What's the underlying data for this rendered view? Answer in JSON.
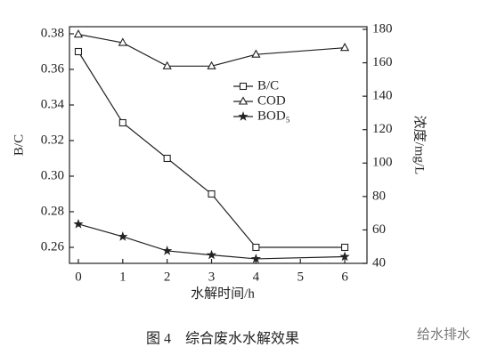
{
  "chart_data": {
    "type": "line",
    "x_label": "水解时间/h",
    "y_label": "B/C",
    "y2_label": "浓度/mg/L",
    "caption": "图 4　综合废水水解效果",
    "watermark": "给水排水",
    "x": [
      0,
      1,
      2,
      3,
      4,
      6
    ],
    "xlim": [
      -0.2,
      6.5
    ],
    "xticks": [
      0,
      1,
      2,
      3,
      4,
      5,
      6
    ],
    "ylim": [
      0.251,
      0.384
    ],
    "yticks": [
      0.26,
      0.28,
      {
        "value": 0.3,
        "label": "0.30"
      },
      0.32,
      0.34,
      0.36,
      0.38
    ],
    "y2lim": [
      40,
      181.6
    ],
    "y2ticks": [
      40,
      60,
      80,
      100,
      120,
      140,
      160,
      180
    ],
    "legend": "center",
    "series": [
      {
        "name": "B/C",
        "color": "#222222",
        "marker": "square",
        "values": [
          0.37,
          0.33,
          0.31,
          0.29,
          0.26,
          0.26
        ]
      },
      {
        "name": "COD",
        "color": "#222222",
        "marker": "triangle",
        "axis": "y2",
        "values": [
          177,
          172,
          158,
          158,
          165,
          169
        ]
      },
      {
        "name": "BOD₅",
        "color": "#222222",
        "marker": "star",
        "axis": "y2",
        "values": [
          63.5,
          56,
          47.5,
          45,
          42.7,
          44
        ]
      }
    ]
  }
}
